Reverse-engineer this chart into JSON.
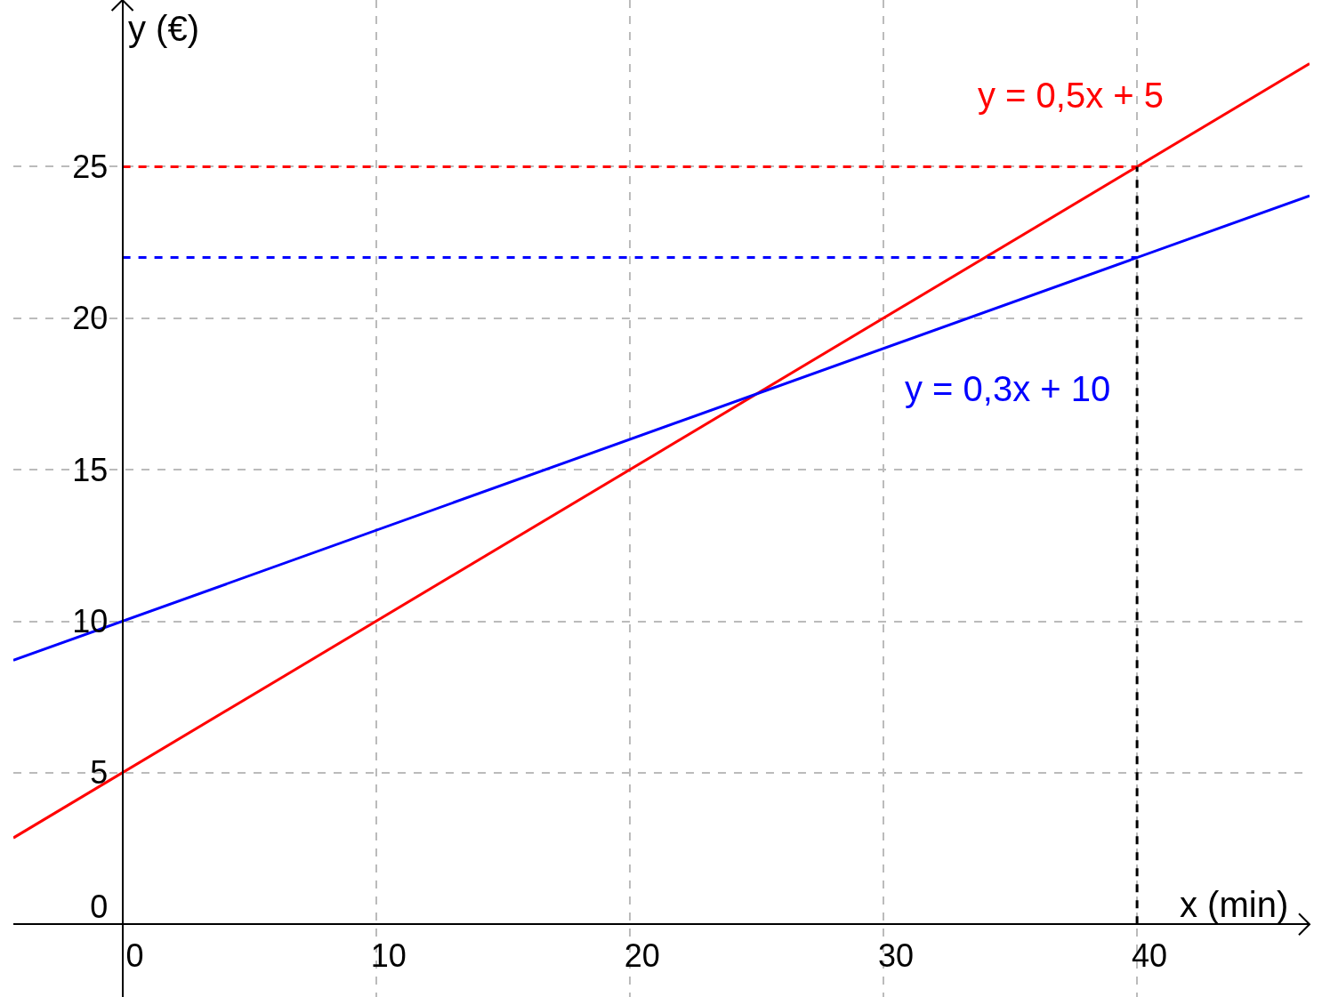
{
  "chart_data": {
    "type": "line",
    "xlabel": "x (min)",
    "ylabel": "y (€)",
    "xlim": [
      -4.3,
      46.8
    ],
    "ylim": [
      -2.4,
      30.5
    ],
    "xticks": [
      0,
      10,
      20,
      30,
      40
    ],
    "yticks": [
      0,
      5,
      10,
      15,
      20,
      25
    ],
    "grid": true,
    "legend": false,
    "marker": "none",
    "series": [
      {
        "name": "y = 0,5x + 5",
        "color": "#ff0000",
        "x": [
          -4.3,
          46.8
        ],
        "values": [
          2.85,
          28.4
        ]
      },
      {
        "name": "y = 0,3x + 10",
        "color": "#0000ff",
        "x": [
          -4.3,
          46.8
        ],
        "values": [
          8.71,
          24.04
        ]
      },
      {
        "color": "#ff0000",
        "x": [
          0,
          40
        ],
        "values": [
          25,
          25
        ],
        "line_style": "dashed"
      },
      {
        "color": "#0000ff",
        "x": [
          0,
          40
        ],
        "values": [
          22,
          22
        ],
        "line_style": "dashed"
      },
      {
        "color": "#000000",
        "x": [
          40,
          40
        ],
        "values": [
          0,
          25
        ],
        "line_style": "dashed"
      }
    ]
  }
}
